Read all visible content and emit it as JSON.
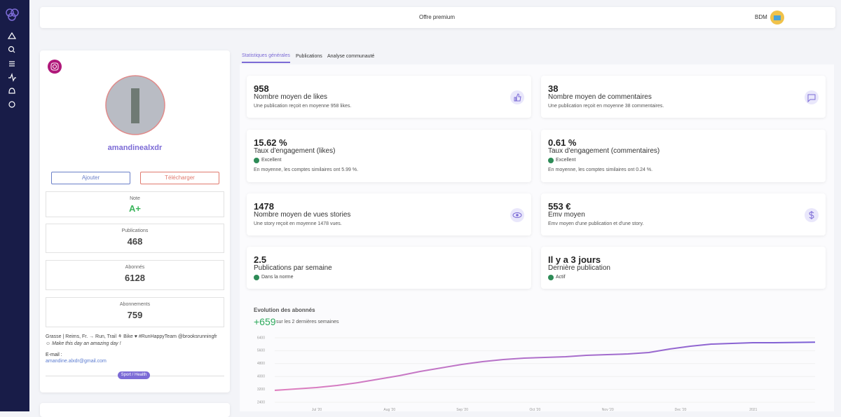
{
  "topbar": {
    "center": "Offre premium",
    "user": "BDM"
  },
  "profile": {
    "username": "amandinealxdr",
    "buttons": [
      "Ajouter",
      "Télécharger"
    ],
    "stats": [
      {
        "label": "Note",
        "value": "A+"
      },
      {
        "label": "Publications",
        "value": "468"
      },
      {
        "label": "Abonnés",
        "value": "6128"
      },
      {
        "label": "Abonnements",
        "value": "759"
      }
    ],
    "bio": [
      "Grasse | Reims, Fr. → Run, Trail ⚘ Bike ♥ #RunHappyTeam @brooksrunningfr",
      "☺ Make this day an amazing day !"
    ],
    "email_label": "E-mail :",
    "email": "amandine.alxdr@gmail.com",
    "tag": "Sport / Health"
  },
  "tabs": [
    "Statistiques générales",
    "Publications",
    "Analyse communauté"
  ],
  "cards": [
    {
      "value": "958",
      "label": "Nombre moyen de likes",
      "note": "Une publication reçoit en moyenne 958 likes."
    },
    {
      "value": "38",
      "label": "Nombre moyen de commentaires",
      "note": "Une publication reçoit en moyenne 38 commentaires."
    },
    {
      "value": "15.62 %",
      "label": "Taux d'engagement (likes)",
      "status": "Excellent",
      "note": "En moyenne, les comptes similaires ont 5.99 %."
    },
    {
      "value": "0.61 %",
      "label": "Taux d'engagement (commentaires)",
      "status": "Excellent",
      "note": "En moyenne, les comptes similaires ont 0.24 %."
    },
    {
      "value": "1478",
      "label": "Nombre moyen de vues stories",
      "note": "Une story reçoit en moyenne 1478 vues."
    },
    {
      "value": "553 €",
      "label": "Emv moyen",
      "note": "Emv moyen d'une publication et d'une story."
    },
    {
      "value": "2.5",
      "label": "Publications par semaine",
      "status": "Dans la norme"
    },
    {
      "value": "Il y a 3 jours",
      "label": "Dernière publication",
      "status": "Actif"
    }
  ],
  "followers_chart": {
    "type": "line",
    "title": "Evolution des abonnés",
    "change": "+659",
    "change_note": "sur les 2 dernières semaines",
    "x_labels": [
      "Jul '20",
      "Aug '20",
      "Sep '20",
      "Oct '20",
      "Nov '20",
      "Dec '20",
      "2021"
    ],
    "values": [
      3139,
      3226,
      3313,
      3443,
      3617,
      3835,
      4052,
      4313,
      4530,
      4748,
      4922,
      5052,
      5139,
      5183,
      5226,
      5313,
      5357,
      5400,
      5487,
      5704,
      5878,
      6009,
      6052,
      6096,
      6096,
      6110,
      6128
    ],
    "ylim": [
      2400,
      6400
    ],
    "yticks": [
      2400,
      3200,
      4000,
      4800,
      5600,
      6400
    ],
    "grid": true,
    "colors": [
      "#e07fbf",
      "#7b5fd6"
    ]
  }
}
